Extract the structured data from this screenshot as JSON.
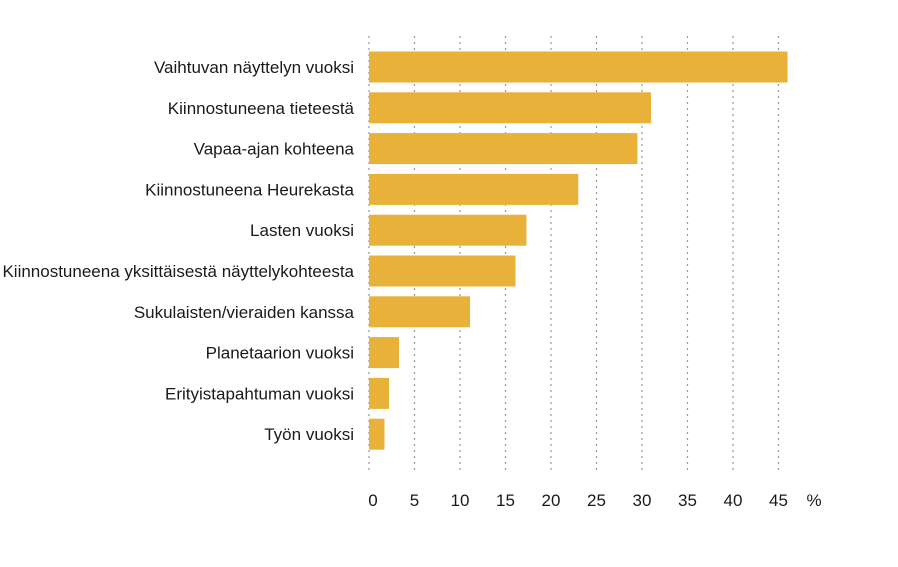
{
  "chart_data": {
    "type": "bar",
    "orientation": "horizontal",
    "categories": [
      "Vaihtuvan näyttelyn vuoksi",
      "Kiinnostuneena tieteestä",
      "Vapaa-ajan kohteena",
      "Kiinnostuneena Heurekasta",
      "Lasten vuoksi",
      "Kiinnostuneena yksittäisestä näyttelykohteesta",
      "Sukulaisten/vieraiden kanssa",
      "Planetaarion vuoksi",
      "Erityistapahtuman vuoksi",
      "Työn vuoksi"
    ],
    "values": [
      46,
      31,
      29.5,
      23,
      17.3,
      16.1,
      11.1,
      3.3,
      2.2,
      1.7
    ],
    "xlim": [
      0,
      48
    ],
    "xticks": [
      0,
      5,
      10,
      15,
      20,
      25,
      30,
      35,
      40,
      45
    ],
    "unit": "%",
    "grid": true,
    "bar_color": "#e8b23a"
  }
}
